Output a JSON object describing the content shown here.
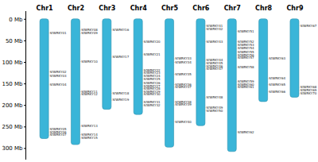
{
  "chart_data": {
    "type": "ideogram",
    "categories": [
      "Chr1",
      "Chr2",
      "Chr3",
      "Chr4",
      "Chr5",
      "Chr6",
      "Chr7",
      "Chr8",
      "Chr9"
    ],
    "values": [
      278,
      292,
      210,
      222,
      298,
      248,
      308,
      192,
      182
    ],
    "color": "#3ab5d8",
    "ylim": [
      325,
      -18
    ],
    "yticks": [
      {
        "value": 0,
        "label": "0 Mb"
      },
      {
        "value": 50,
        "label": "50 Mb"
      },
      {
        "value": 100,
        "label": "100 Mb"
      },
      {
        "value": 150,
        "label": "150 Mb"
      },
      {
        "value": 200,
        "label": "200 Mb"
      },
      {
        "value": 250,
        "label": "250 Mb"
      },
      {
        "value": 300,
        "label": "300 Mb"
      }
    ],
    "genes": [
      [
        {
          "name": "SfWRKY01",
          "pos": 32
        },
        {
          "name": "SfWRKY02",
          "pos": 122
        },
        {
          "name": "SfWRKY03",
          "pos": 131
        },
        {
          "name": "SfWRKY04",
          "pos": 152
        },
        {
          "name": "SfWRKY05",
          "pos": 255
        },
        {
          "name": "SfWRKY06",
          "pos": 262
        },
        {
          "name": "SfWRKY07",
          "pos": 269
        }
      ],
      [
        {
          "name": "SfWRKY08",
          "pos": 25
        },
        {
          "name": "SfWRKY09",
          "pos": 33
        },
        {
          "name": "SfWRKY10",
          "pos": 98
        },
        {
          "name": "SfWRKY11",
          "pos": 168
        },
        {
          "name": "SfWRKY12",
          "pos": 175
        },
        {
          "name": "SfWRKY13",
          "pos": 248
        },
        {
          "name": "SfWRKY14",
          "pos": 268
        },
        {
          "name": "SfWRKY15",
          "pos": 276
        }
      ],
      [
        {
          "name": "SfWRKY16",
          "pos": 25
        },
        {
          "name": "SfWRKY17",
          "pos": 88
        },
        {
          "name": "SfWRKY18",
          "pos": 172
        },
        {
          "name": "SfWRKY19",
          "pos": 188
        }
      ],
      [
        {
          "name": "SfWRKY20",
          "pos": 52
        },
        {
          "name": "SfWRKY21",
          "pos": 82
        },
        {
          "name": "SfWRKY22",
          "pos": 118
        },
        {
          "name": "SfWRKY23",
          "pos": 125
        },
        {
          "name": "SfWRKY24",
          "pos": 132
        },
        {
          "name": "SfWRKY25",
          "pos": 139
        },
        {
          "name": "SfWRKY26",
          "pos": 148
        },
        {
          "name": "SfWRKY27",
          "pos": 155
        },
        {
          "name": "SfWRKY28",
          "pos": 161
        },
        {
          "name": "SfWRKY29",
          "pos": 168
        },
        {
          "name": "SfWRKY30",
          "pos": 175
        },
        {
          "name": "SfWRKY31",
          "pos": 193
        },
        {
          "name": "SfWRKY32",
          "pos": 200
        }
      ],
      [
        {
          "name": "SfWRKY33",
          "pos": 92
        },
        {
          "name": "SfWRKY34",
          "pos": 100
        },
        {
          "name": "SfWRKY35",
          "pos": 128
        },
        {
          "name": "SfWRKY36",
          "pos": 152
        },
        {
          "name": "SfWRKY37",
          "pos": 158
        },
        {
          "name": "SfWRKY38",
          "pos": 192
        },
        {
          "name": "SfWRKY39",
          "pos": 199
        },
        {
          "name": "SfWRKY40",
          "pos": 238
        }
      ],
      [
        {
          "name": "SfWRKY41",
          "pos": 15
        },
        {
          "name": "SfWRKY42",
          "pos": 23
        },
        {
          "name": "SfWRKY43",
          "pos": 52
        },
        {
          "name": "SfWRKY44",
          "pos": 95
        },
        {
          "name": "SfWRKY45",
          "pos": 102
        },
        {
          "name": "SfWRKY46",
          "pos": 109
        },
        {
          "name": "SfWRKY47",
          "pos": 116
        },
        {
          "name": "SfWRKY48",
          "pos": 182
        },
        {
          "name": "SfWRKY49",
          "pos": 205
        },
        {
          "name": "SfWRKY50",
          "pos": 212
        }
      ],
      [
        {
          "name": "SfWRKY51",
          "pos": 28
        },
        {
          "name": "SfWRKY52",
          "pos": 52
        },
        {
          "name": "SfWRKY53",
          "pos": 60
        },
        {
          "name": "SfWRKY54",
          "pos": 68
        },
        {
          "name": "SfWRKY55",
          "pos": 76
        },
        {
          "name": "SfWRKY56",
          "pos": 83
        },
        {
          "name": "SfWRKY57",
          "pos": 90
        },
        {
          "name": "SfWRKY58",
          "pos": 112
        },
        {
          "name": "SfWRKY59",
          "pos": 145
        },
        {
          "name": "SfWRKY60",
          "pos": 152
        },
        {
          "name": "SfWRKY61",
          "pos": 158
        },
        {
          "name": "SfWRKY62",
          "pos": 262
        }
      ],
      [
        {
          "name": "SfWRKY63",
          "pos": 92
        },
        {
          "name": "SfWRKY64",
          "pos": 138
        },
        {
          "name": "SfWRKY65",
          "pos": 152
        },
        {
          "name": "SfWRKY66",
          "pos": 168
        }
      ],
      [
        {
          "name": "SfWRKY67",
          "pos": 15
        },
        {
          "name": "SfWRKY68",
          "pos": 158
        },
        {
          "name": "SfWRKY69",
          "pos": 165
        },
        {
          "name": "SfWRKY70",
          "pos": 172
        }
      ]
    ]
  }
}
